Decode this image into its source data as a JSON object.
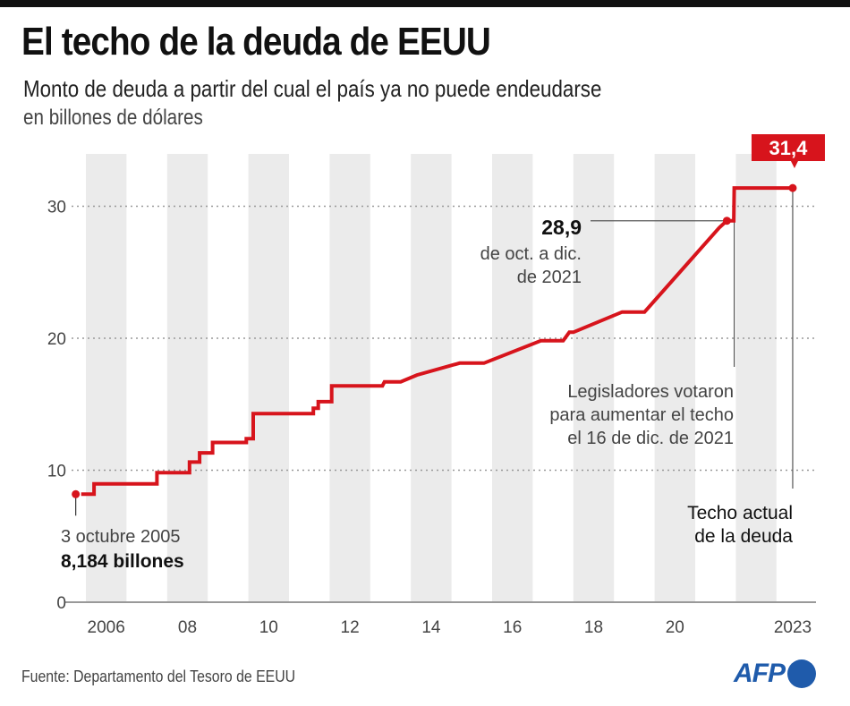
{
  "header": {
    "title": "El techo de la deuda de EEUU",
    "subtitle": "Monto de deuda a partir del cual el país ya no puede endeudarse",
    "unit": "en billones de dólares"
  },
  "footer": {
    "source": "Fuente: Departamento del Tesoro de EEUU",
    "logo": "AFP"
  },
  "colors": {
    "line": "#d7141c",
    "band": "#ebebeb",
    "grid": "#999999",
    "logo": "#1f5bab"
  },
  "chart_data": {
    "type": "line",
    "title": "El techo de la deuda de EEUU",
    "subtitle": "Monto de deuda a partir del cual el país ya no puede endeudarse",
    "ylabel": "en billones de dólares",
    "xlabel": "",
    "xlim": [
      2005.6,
      2023.5
    ],
    "ylim": [
      0,
      33
    ],
    "y_ticks": [
      0,
      10,
      20,
      30
    ],
    "y_tick_labels": [
      "0",
      "10",
      "20",
      "30"
    ],
    "x_ticks": [
      2006.5,
      2008.5,
      2010.5,
      2012.5,
      2014.5,
      2016.5,
      2018.5,
      2020.5,
      2023.4
    ],
    "x_tick_labels": [
      "2006",
      "08",
      "10",
      "12",
      "14",
      "16",
      "18",
      "20",
      "2023"
    ],
    "shaded_years": [
      2006,
      2008,
      2010,
      2012,
      2014,
      2016,
      2018,
      2020,
      2022
    ],
    "grid": "horizontal dotted",
    "series": [
      {
        "name": "Techo de la deuda",
        "points": [
          [
            2005.75,
            8.184
          ],
          [
            2006.2,
            8.184
          ],
          [
            2006.2,
            8.965
          ],
          [
            2007.75,
            8.965
          ],
          [
            2007.75,
            9.815
          ],
          [
            2008.55,
            9.815
          ],
          [
            2008.55,
            10.615
          ],
          [
            2008.8,
            10.615
          ],
          [
            2008.8,
            11.315
          ],
          [
            2009.12,
            11.315
          ],
          [
            2009.12,
            12.104
          ],
          [
            2009.95,
            12.104
          ],
          [
            2009.95,
            12.394
          ],
          [
            2010.12,
            12.394
          ],
          [
            2010.12,
            14.294
          ],
          [
            2011.6,
            14.294
          ],
          [
            2011.6,
            14.694
          ],
          [
            2011.72,
            14.694
          ],
          [
            2011.72,
            15.194
          ],
          [
            2012.05,
            15.194
          ],
          [
            2012.05,
            16.394
          ],
          [
            2013.3,
            16.394
          ],
          [
            2013.35,
            16.699
          ],
          [
            2013.75,
            16.699
          ],
          [
            2014.15,
            17.212
          ],
          [
            2015.2,
            18.113
          ],
          [
            2015.8,
            18.113
          ],
          [
            2017.2,
            19.809
          ],
          [
            2017.75,
            19.809
          ],
          [
            2017.9,
            20.456
          ],
          [
            2018.0,
            20.456
          ],
          [
            2019.2,
            21.988
          ],
          [
            2019.75,
            21.988
          ],
          [
            2021.6,
            28.4
          ],
          [
            2021.78,
            28.9
          ],
          [
            2021.95,
            28.9
          ],
          [
            2021.96,
            31.381
          ],
          [
            2023.4,
            31.381
          ]
        ]
      }
    ],
    "annotations": [
      {
        "text": [
          "3 octubre 2005",
          "8,184 billones"
        ],
        "x": 2005.75,
        "y": 8.184
      },
      {
        "text": [
          "28,9",
          "de oct. a dic.",
          "de 2021"
        ],
        "x": 2021.78,
        "y": 28.9
      },
      {
        "text": [
          "Legisladores votaron",
          "para aumentar el techo",
          "el 16 de dic. de 2021"
        ],
        "x": 2021.96,
        "y": 31.381
      },
      {
        "text": [
          "Techo actual",
          "de la deuda"
        ],
        "x": 2023.4,
        "y": 31.4
      },
      {
        "text": [
          "31,4"
        ],
        "x": 2023.4,
        "y": 31.4,
        "style": "callout"
      }
    ]
  },
  "labels": {
    "start_date": "3 octubre 2005",
    "start_value": "8,184 billones",
    "oct_value": "28,9",
    "oct_line1": "de oct. a dic.",
    "oct_line2": "de 2021",
    "vote_line1": "Legisladores votaron",
    "vote_line2": "para aumentar el techo",
    "vote_line3": "el 16 de dic. de 2021",
    "current_line1": "Techo actual",
    "current_line2": "de la deuda",
    "current_value": "31,4"
  }
}
